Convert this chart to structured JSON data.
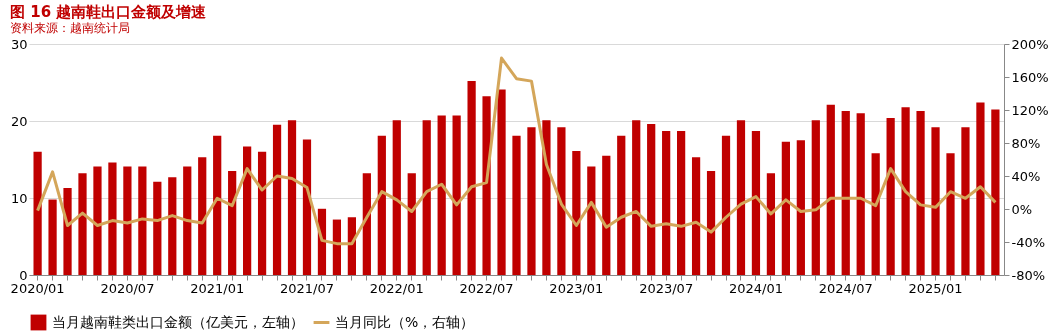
{
  "chart_data": {
    "type": "bar",
    "title": "图 16 越南鞋出口金额及增速",
    "categories": [
      "2020/01",
      null,
      null,
      null,
      null,
      null,
      "2020/07",
      null,
      null,
      null,
      null,
      null,
      "2021/01",
      null,
      null,
      null,
      null,
      null,
      "2021/07",
      null,
      null,
      null,
      null,
      null,
      "2022/01",
      null,
      null,
      null,
      null,
      null,
      "2022/07",
      null,
      null,
      null,
      null,
      null,
      "2023/01",
      null,
      null,
      null,
      null,
      null,
      "2023/07",
      null,
      null,
      null,
      null,
      null,
      "2024/01",
      null,
      null,
      null,
      null,
      null,
      "2024/07",
      null,
      null,
      null,
      null,
      null,
      "2025/01",
      null,
      null,
      null,
      null
    ],
    "series": [
      {
        "name": "当月越南鞋类出口金额（亿美元，左轴）",
        "color": "#c00000",
        "values": [
          16.0,
          9.8,
          11.3,
          13.2,
          14.1,
          14.6,
          14.1,
          14.1,
          12.1,
          12.7,
          14.1,
          15.3,
          18.1,
          13.5,
          16.7,
          16.0,
          19.5,
          20.1,
          17.6,
          8.6,
          7.2,
          7.5,
          13.2,
          18.1,
          20.1,
          13.2,
          20.1,
          20.7,
          20.7,
          25.2,
          23.2,
          24.1,
          18.1,
          19.2,
          20.1,
          19.2,
          16.1,
          14.1,
          15.5,
          18.1,
          20.1,
          19.6,
          18.7,
          18.7,
          15.3,
          13.5,
          18.1,
          20.1,
          18.7,
          13.2,
          17.3,
          17.5,
          20.1,
          22.1,
          21.3,
          21.0,
          15.8,
          20.4,
          21.8,
          21.3,
          19.2,
          15.8,
          19.2,
          22.4,
          21.5
        ]
      },
      {
        "name": "当月同比（%，右轴）",
        "type": "line",
        "axis": "y2",
        "color": "#d4a65a",
        "values": [
          -2,
          45,
          -20,
          -5,
          -20,
          -14,
          -17,
          -12,
          -14,
          -8,
          -14,
          -17,
          13,
          4,
          49,
          23,
          40,
          37,
          26,
          -38,
          -42,
          -42,
          -10,
          21,
          11,
          -3,
          21,
          30,
          5,
          27,
          32,
          183,
          158,
          155,
          54,
          6,
          -20,
          8,
          -22,
          -10,
          -3,
          -21,
          -18,
          -21,
          -16,
          -28,
          -10,
          6,
          15,
          -6,
          11,
          -3,
          -1,
          13,
          13,
          13,
          4,
          49,
          21,
          5,
          2,
          21,
          13,
          27,
          8
        ]
      }
    ],
    "ylim": [
      0,
      30
    ],
    "yticks": [
      0,
      10,
      20,
      30
    ],
    "y2lim": [
      -80,
      200
    ],
    "y2ticks": [
      {
        "value": -80,
        "label": "-80%"
      },
      {
        "value": -40,
        "label": "-40%"
      },
      {
        "value": 0,
        "label": "0%"
      },
      {
        "value": 40,
        "label": "40%"
      },
      {
        "value": 80,
        "label": "80%"
      },
      {
        "value": 120,
        "label": "120%"
      },
      {
        "value": 160,
        "label": "160%"
      },
      {
        "value": 200,
        "label": "200%"
      }
    ],
    "grid": "y",
    "legend": "bottom",
    "annotations": [
      "资料来源：越南统计局"
    ]
  }
}
